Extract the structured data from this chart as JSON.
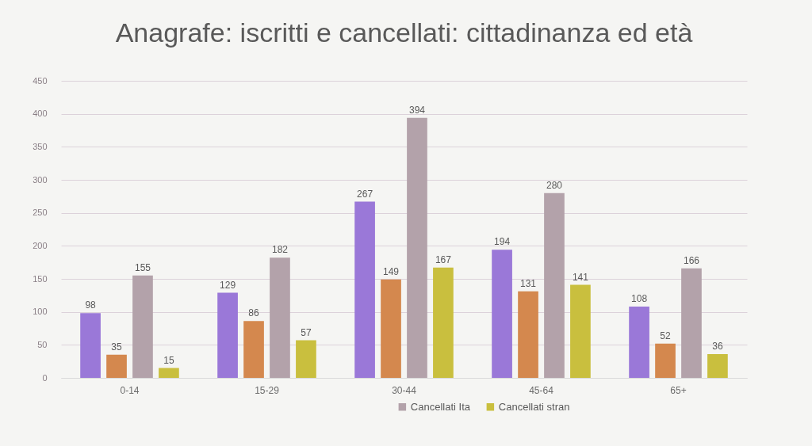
{
  "chart_data": {
    "type": "bar",
    "title": "Anagrafe: iscritti e cancellati: cittadinanza ed età",
    "categories": [
      "0-14",
      "15-29",
      "30-44",
      "45-64",
      "65+"
    ],
    "series": [
      {
        "color": "#9a78d8",
        "values": [
          98,
          129,
          267,
          194,
          108
        ]
      },
      {
        "color": "#d4884e",
        "values": [
          35,
          86,
          149,
          131,
          52
        ]
      },
      {
        "name": "Cancellati Ita",
        "color": "#b3a2aa",
        "values": [
          155,
          182,
          394,
          280,
          166
        ]
      },
      {
        "name": "Cancellati stran",
        "color": "#c9bf3e",
        "values": [
          15,
          57,
          167,
          141,
          36
        ]
      }
    ],
    "ylim": [
      0,
      450
    ],
    "yticks": [
      0,
      50,
      100,
      150,
      200,
      250,
      300,
      350,
      400,
      450
    ],
    "grid": "y",
    "data_labels": true,
    "legend": "bottom"
  }
}
